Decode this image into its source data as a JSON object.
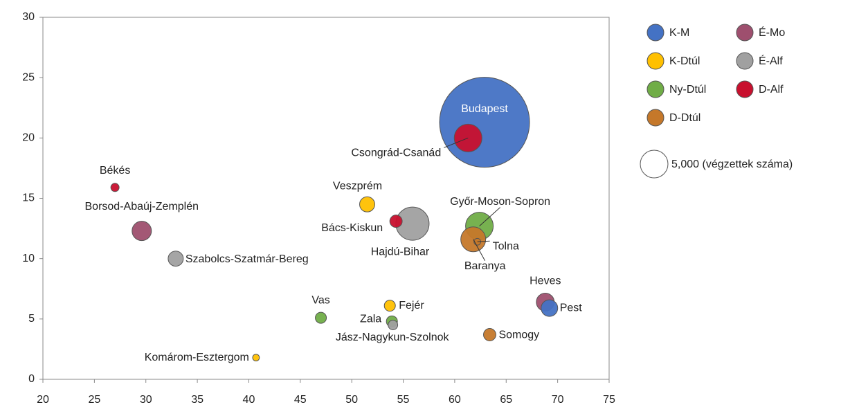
{
  "chart_data": {
    "type": "bubble",
    "xlim": [
      20,
      75
    ],
    "xticks": [
      20,
      25,
      30,
      35,
      40,
      45,
      50,
      55,
      60,
      65,
      70,
      75
    ],
    "ylim": [
      0,
      30
    ],
    "yticks": [
      0,
      5,
      10,
      15,
      20,
      25,
      30
    ],
    "series": [
      {
        "name": "K-M",
        "color": "#4472c4",
        "labels": [
          "Budapest",
          "Pest"
        ],
        "x": [
          62.9,
          69.2
        ],
        "y": [
          21.3,
          5.9
        ],
        "sizes": [
          52800,
          1800
        ]
      },
      {
        "name": "K-Dtúl",
        "color": "#ffc000",
        "labels": [
          "Veszprém",
          "Fejér",
          "Komárom-Esztergom"
        ],
        "x": [
          51.5,
          53.7,
          40.7
        ],
        "y": [
          14.5,
          6.1,
          1.8
        ],
        "sizes": [
          1500,
          800,
          300
        ]
      },
      {
        "name": "Ny-Dtúl",
        "color": "#70ad47",
        "labels": [
          "Győr-Moson-Sopron",
          "Vas",
          "Zala"
        ],
        "x": [
          62.4,
          47.0,
          53.9
        ],
        "y": [
          12.7,
          5.1,
          4.8
        ],
        "sizes": [
          5000,
          800,
          800
        ]
      },
      {
        "name": "D-Dtúl",
        "color": "#c5782a",
        "labels": [
          "Baranya",
          "Tolna",
          "Somogy"
        ],
        "x": [
          61.8,
          62.2,
          63.4
        ],
        "y": [
          11.6,
          11.4,
          3.7
        ],
        "sizes": [
          4050,
          300,
          1000
        ]
      },
      {
        "name": "É-Mo",
        "color": "#9e4f6e",
        "labels": [
          "Borsod-Abaúj-Zemplén",
          "Heves"
        ],
        "x": [
          29.6,
          68.8
        ],
        "y": [
          12.3,
          6.4
        ],
        "sizes": [
          2450,
          2100
        ]
      },
      {
        "name": "É-Alf",
        "color": "#a0a0a0",
        "labels": [
          "Szabolcs-Szatmár-Bereg",
          "Hajdú-Bihar",
          "Jász-Nagykun-Szolnok"
        ],
        "x": [
          32.9,
          55.9,
          54.0
        ],
        "y": [
          10.0,
          12.9,
          4.5
        ],
        "sizes": [
          1500,
          7200,
          600
        ]
      },
      {
        "name": "D-Alf",
        "color": "#c8102e",
        "labels": [
          "Csongrád-Csanád",
          "Békés",
          "Bács-Kiskun"
        ],
        "x": [
          61.3,
          27.0,
          54.3
        ],
        "y": [
          20.0,
          15.9,
          13.1
        ],
        "sizes": [
          5000,
          450,
          1000
        ]
      }
    ],
    "size_legend": {
      "value": 5000,
      "label": "5,000 (végzettek száma)"
    }
  }
}
